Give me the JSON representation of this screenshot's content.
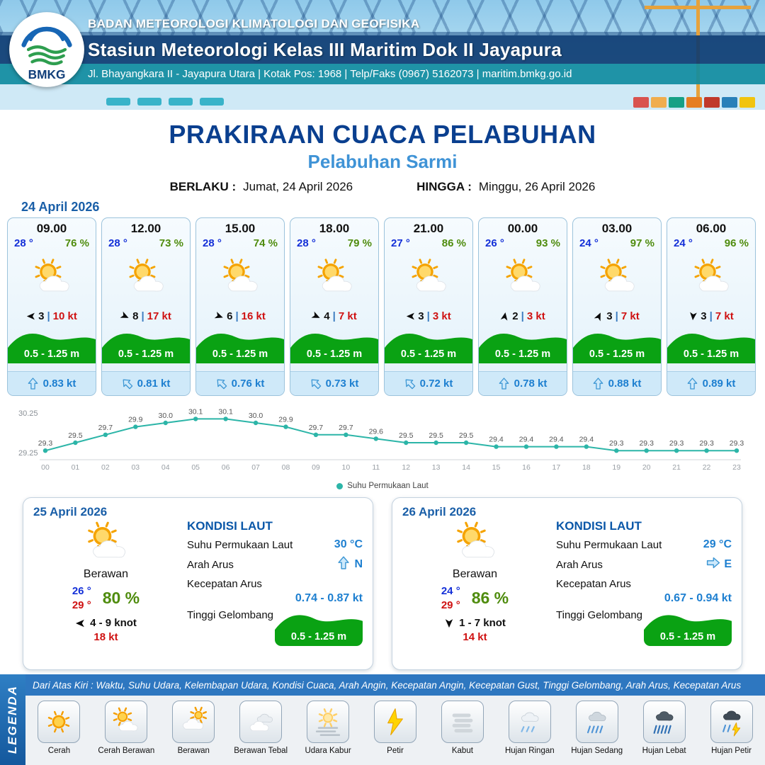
{
  "colors": {
    "navy": "#0a3f8f",
    "subtitle_blue": "#3f93d6",
    "teal_band": "#118ca0",
    "temp_blue": "#1430d8",
    "humidity_green": "#4f8c0e",
    "speed_red": "#cf1212",
    "wave_green": "#0aa213",
    "current_blue": "#1d7fd0",
    "chart_teal": "#2cb5a8"
  },
  "header": {
    "agency": "BADAN METEOROLOGI KLIMATOLOGI DAN GEOFISIKA",
    "station": "Stasiun Meteorologi Kelas III Maritim Dok II Jayapura",
    "address": "Jl. Bhayangkara II - Jayapura Utara | Kotak Pos: 1968 | Telp/Faks (0967) 5162073 | maritim.bmkg.go.id",
    "logo_text": "BMKG"
  },
  "title": {
    "main": "PRAKIRAAN CUACA PELABUHAN",
    "subtitle": "Pelabuhan Sarmi"
  },
  "validity": {
    "berlaku_label": "BERLAKU :",
    "berlaku": "Jumat, 24 April 2026",
    "hingga_label": "HINGGA :",
    "hingga": "Minggu, 26 April 2026"
  },
  "forecast": {
    "date": "24 April 2026",
    "cards": [
      {
        "time": "09.00",
        "temp": "28 °",
        "humidity": "76 %",
        "wind_value": "3",
        "wind_gust": "10 kt",
        "wind_rot": 180,
        "wave": "0.5 - 1.25 m",
        "current": "0.83 kt",
        "current_rot": 0
      },
      {
        "time": "12.00",
        "temp": "28 °",
        "humidity": "73 %",
        "wind_value": "8",
        "wind_gust": "17 kt",
        "wind_rot": 25,
        "wave": "0.5 - 1.25 m",
        "current": "0.81 kt",
        "current_rot": -45
      },
      {
        "time": "15.00",
        "temp": "28 °",
        "humidity": "74 %",
        "wind_value": "6",
        "wind_gust": "16 kt",
        "wind_rot": 20,
        "wave": "0.5 - 1.25 m",
        "current": "0.76 kt",
        "current_rot": -45
      },
      {
        "time": "18.00",
        "temp": "28 °",
        "humidity": "79 %",
        "wind_value": "4",
        "wind_gust": "7 kt",
        "wind_rot": 25,
        "wave": "0.5 - 1.25 m",
        "current": "0.73 kt",
        "current_rot": -45
      },
      {
        "time": "21.00",
        "temp": "27 °",
        "humidity": "86 %",
        "wind_value": "3",
        "wind_gust": "3 kt",
        "wind_rot": 180,
        "wave": "0.5 - 1.25 m",
        "current": "0.72 kt",
        "current_rot": -45
      },
      {
        "time": "00.00",
        "temp": "26 °",
        "humidity": "93 %",
        "wind_value": "2",
        "wind_gust": "3 kt",
        "wind_rot": -80,
        "wave": "0.5 - 1.25 m",
        "current": "0.78 kt",
        "current_rot": 0
      },
      {
        "time": "03.00",
        "temp": "24 °",
        "humidity": "97 %",
        "wind_value": "3",
        "wind_gust": "7 kt",
        "wind_rot": -65,
        "wave": "0.5 - 1.25 m",
        "current": "0.88 kt",
        "current_rot": 0
      },
      {
        "time": "06.00",
        "temp": "24 °",
        "humidity": "96 %",
        "wind_value": "3",
        "wind_gust": "7 kt",
        "wind_rot": 95,
        "wave": "0.5 - 1.25 m",
        "current": "0.89 kt",
        "current_rot": 0
      }
    ]
  },
  "chart_data": {
    "type": "line",
    "title": "",
    "xlabel": "",
    "ylabel": "",
    "series_name": "Suhu Permukaan Laut",
    "x": [
      "00",
      "01",
      "02",
      "03",
      "04",
      "05",
      "06",
      "07",
      "08",
      "09",
      "10",
      "11",
      "12",
      "13",
      "14",
      "15",
      "16",
      "17",
      "18",
      "19",
      "20",
      "21",
      "22",
      "23"
    ],
    "values": [
      29.3,
      29.5,
      29.7,
      29.9,
      30.0,
      30.1,
      30.1,
      30.0,
      29.9,
      29.7,
      29.7,
      29.6,
      29.5,
      29.5,
      29.5,
      29.4,
      29.4,
      29.4,
      29.4,
      29.3,
      29.3,
      29.3,
      29.3,
      29.3
    ],
    "ylim": [
      29.25,
      30.25
    ],
    "ytick_labels": [
      "30.25",
      "29.25"
    ],
    "grid": false,
    "legend_position": "bottom",
    "line_color": "#2cb5a8"
  },
  "day_cards": [
    {
      "date": "25 April 2026",
      "condition": "Berawan",
      "temp_min": "26 °",
      "temp_max": "29 °",
      "humidity": "80 %",
      "wind_range": "4 - 9 knot",
      "wind_rot": 180,
      "gust": "18 kt",
      "sea": {
        "heading": "KONDISI LAUT",
        "sst_label": "Suhu Permukaan Laut",
        "sst": "30 °C",
        "current_dir_label": "Arah Arus",
        "current_dir": "N",
        "current_dir_rot": 0,
        "current_speed_label": "Kecepatan Arus",
        "current_speed": "0.74 - 0.87 kt",
        "wave_label": "Tinggi Gelombang",
        "wave": "0.5 - 1.25 m"
      }
    },
    {
      "date": "26 April 2026",
      "condition": "Berawan",
      "temp_min": "24 °",
      "temp_max": "29 °",
      "humidity": "86 %",
      "wind_range": "1 - 7 knot",
      "wind_rot": 90,
      "gust": "14 kt",
      "sea": {
        "heading": "KONDISI LAUT",
        "sst_label": "Suhu Permukaan Laut",
        "sst": "29 °C",
        "current_dir_label": "Arah Arus",
        "current_dir": "E",
        "current_dir_rot": 90,
        "current_speed_label": "Kecepatan Arus",
        "current_speed": "0.67 - 0.94 kt",
        "wave_label": "Tinggi Gelombang",
        "wave": "0.5 - 1.25 m"
      }
    }
  ],
  "legend": {
    "sidebar": "LEGENDA",
    "strip": "Dari Atas Kiri : Waktu, Suhu Udara, Kelembapan Udara, Kondisi Cuaca, Arah Angin, Kecepatan Angin, Kecepatan Gust, Tinggi Gelombang, Arah Arus, Kecepatan Arus",
    "items": [
      {
        "label": "Cerah",
        "icon": "sun-icon"
      },
      {
        "label": "Cerah Berawan",
        "icon": "sun-cloud-icon"
      },
      {
        "label": "Berawan",
        "icon": "cloud-sun-icon"
      },
      {
        "label": "Berawan Tebal",
        "icon": "clouds-icon"
      },
      {
        "label": "Udara Kabur",
        "icon": "haze-icon"
      },
      {
        "label": "Petir",
        "icon": "lightning-icon"
      },
      {
        "label": "Kabut",
        "icon": "fog-icon"
      },
      {
        "label": "Hujan Ringan",
        "icon": "light-rain-icon"
      },
      {
        "label": "Hujan Sedang",
        "icon": "moderate-rain-icon"
      },
      {
        "label": "Hujan Lebat",
        "icon": "heavy-rain-icon"
      },
      {
        "label": "Hujan Petir",
        "icon": "storm-icon"
      }
    ]
  }
}
